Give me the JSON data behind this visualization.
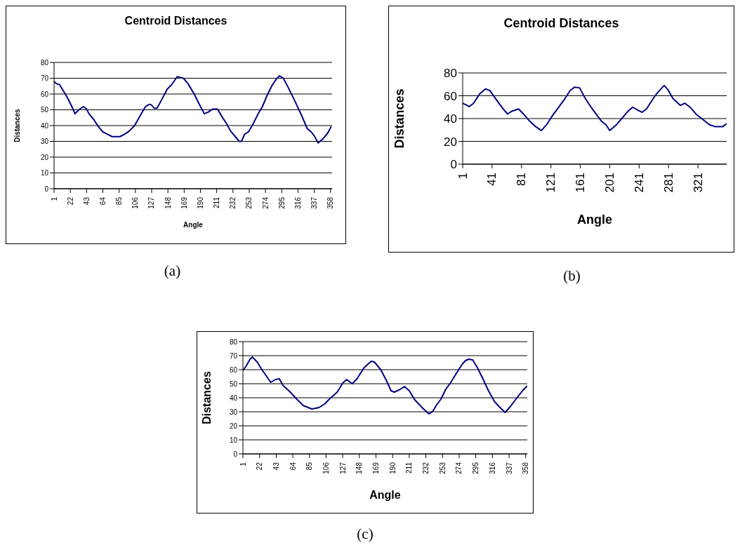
{
  "chart_data": [
    {
      "type": "line",
      "title": "Centroid Distances",
      "xlabel": "Angle",
      "ylabel": "Distances",
      "annotations": [
        "(a)"
      ],
      "color": "#000080",
      "grid": "y",
      "xlim": [
        1,
        360
      ],
      "xticks": [
        1,
        22,
        43,
        64,
        85,
        106,
        127,
        148,
        169,
        190,
        211,
        232,
        253,
        274,
        295,
        316,
        337,
        358
      ],
      "ylim": [
        0,
        80
      ],
      "yticks": [
        0,
        10,
        20,
        30,
        40,
        50,
        60,
        70,
        80
      ],
      "x": [
        1,
        4,
        8,
        13,
        19,
        24,
        28,
        33,
        39,
        43,
        46,
        52,
        58,
        64,
        70,
        76,
        86,
        92,
        98,
        105,
        113,
        119,
        124,
        127,
        130,
        134,
        139,
        147,
        153,
        160,
        168,
        174,
        182,
        188,
        195,
        200,
        206,
        212,
        218,
        224,
        229,
        235,
        240,
        243,
        247,
        252,
        258,
        264,
        270,
        276,
        282,
        288,
        292,
        297,
        303,
        312,
        321,
        328,
        333,
        337,
        342,
        348,
        354,
        359
      ],
      "values": [
        68,
        66.5,
        66,
        62,
        57,
        52,
        47.5,
        50,
        52,
        50.5,
        47.5,
        44,
        39.5,
        36,
        34.5,
        33,
        33,
        34.5,
        36.5,
        40,
        47,
        52,
        53.5,
        53,
        51,
        51,
        55.5,
        63,
        66,
        71,
        70,
        66.5,
        60,
        54,
        47.5,
        48.5,
        50.5,
        50.5,
        45.5,
        41,
        36.5,
        33,
        30,
        30,
        34.5,
        36,
        41,
        47,
        52,
        59,
        65,
        69.5,
        71.5,
        70,
        64.5,
        55.5,
        46,
        38,
        36,
        33.5,
        29,
        31.5,
        35,
        39.5
      ]
    },
    {
      "type": "line",
      "title": "Centroid Distances",
      "xlabel": "Angle",
      "ylabel": "Distances",
      "annotations": [
        "(b)"
      ],
      "color": "#000080",
      "grid": "y",
      "xlim": [
        1,
        360
      ],
      "xticks": [
        1,
        41,
        81,
        121,
        161,
        201,
        241,
        281,
        321
      ],
      "ylim": [
        0,
        80
      ],
      "yticks": [
        0,
        20,
        40,
        60,
        80
      ],
      "x": [
        1,
        10,
        16,
        24,
        32,
        38,
        48,
        56,
        62,
        68,
        77,
        83,
        91,
        99,
        108,
        115,
        123,
        131,
        139,
        147,
        153,
        160,
        167,
        175,
        183,
        190,
        196,
        201,
        210,
        218,
        226,
        232,
        239,
        245,
        251,
        261,
        267,
        275,
        280,
        287,
        297,
        303,
        311,
        319,
        329,
        337,
        344,
        355,
        360
      ],
      "values": [
        53.5,
        50.5,
        53.5,
        61.5,
        66,
        64.5,
        55.5,
        48.5,
        44,
        46.5,
        48.5,
        44.5,
        38.5,
        33.5,
        29.5,
        34.5,
        42.5,
        49.5,
        56.5,
        64.5,
        67.5,
        67,
        58.5,
        50.5,
        43.5,
        37.5,
        34.5,
        29.5,
        34.5,
        40.5,
        46.5,
        50,
        47.5,
        45.5,
        48.5,
        58.5,
        63.5,
        69,
        65.5,
        57.5,
        51.5,
        53.5,
        49.5,
        43.5,
        38.5,
        34.5,
        33,
        33,
        35.5
      ]
    },
    {
      "type": "line",
      "xlabel": "Angle",
      "ylabel": "Distances",
      "annotations": [
        "(c)"
      ],
      "color": "#000080",
      "grid": "y",
      "xlim": [
        1,
        360
      ],
      "xticks": [
        1,
        22,
        43,
        64,
        85,
        106,
        127,
        148,
        169,
        190,
        211,
        232,
        253,
        274,
        295,
        316,
        337,
        358
      ],
      "ylim": [
        0,
        80
      ],
      "yticks": [
        0,
        10,
        20,
        30,
        40,
        50,
        60,
        70,
        80
      ],
      "x": [
        1,
        5,
        10,
        13,
        19,
        25,
        30,
        36,
        42,
        47,
        52,
        60,
        69,
        77,
        88,
        97,
        104,
        111,
        120,
        127,
        132,
        139,
        145,
        154,
        163,
        167,
        175,
        182,
        188,
        192,
        198,
        205,
        211,
        218,
        229,
        236,
        241,
        245,
        251,
        257,
        263,
        270,
        278,
        282,
        286,
        291,
        297,
        304,
        311,
        319,
        324,
        332,
        339,
        347,
        354,
        360
      ],
      "values": [
        59.5,
        62.5,
        67.5,
        69,
        65.5,
        60,
        56,
        51,
        53,
        53.5,
        48.5,
        44.5,
        39,
        34.5,
        32,
        33,
        35.5,
        39.5,
        44,
        50.5,
        53,
        50,
        53.5,
        61.5,
        66,
        65.5,
        60,
        52.5,
        45,
        44,
        45.5,
        48,
        45,
        38.5,
        32,
        28.5,
        30.5,
        34.5,
        39,
        46,
        50.5,
        57,
        64,
        66.5,
        67.5,
        67,
        61.5,
        53.5,
        45,
        37,
        34,
        29.5,
        34,
        40,
        45,
        48.5
      ]
    }
  ]
}
